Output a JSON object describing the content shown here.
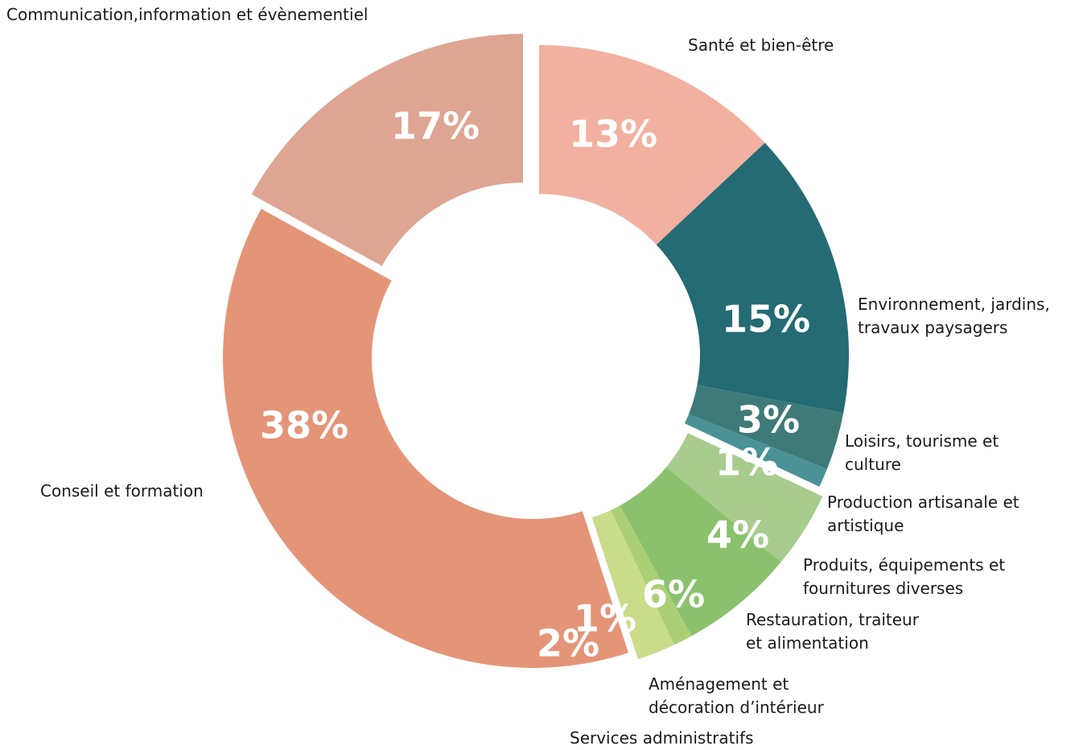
{
  "chart_data": {
    "type": "donut",
    "categories": [
      "Santé et bien-être",
      "Environnement, jardins, travaux paysagers",
      "Loisirs, tourisme et culture",
      "Production artisanale et artistique",
      "Produits, équipements et fournitures diverses",
      "Restauration, traiteur et alimentation",
      "Aménagement et décoration d’intérieur",
      "Services administratifs",
      "Conseil et formation",
      "Communication,information et évènementiel"
    ],
    "values": [
      13,
      15,
      3,
      1,
      4,
      6,
      1,
      2,
      38,
      17
    ],
    "value_labels": [
      "13%",
      "15%",
      "3%",
      "1%",
      "4%",
      "6%",
      "1%",
      "2%",
      "38%",
      "17%"
    ],
    "colors": [
      "#f2b1a0",
      "#246b74",
      "#3d7a78",
      "#4a9296",
      "#a8cb8e",
      "#8bc16d",
      "#aacf75",
      "#c8dc8a",
      "#e49577",
      "#dea593"
    ]
  }
}
